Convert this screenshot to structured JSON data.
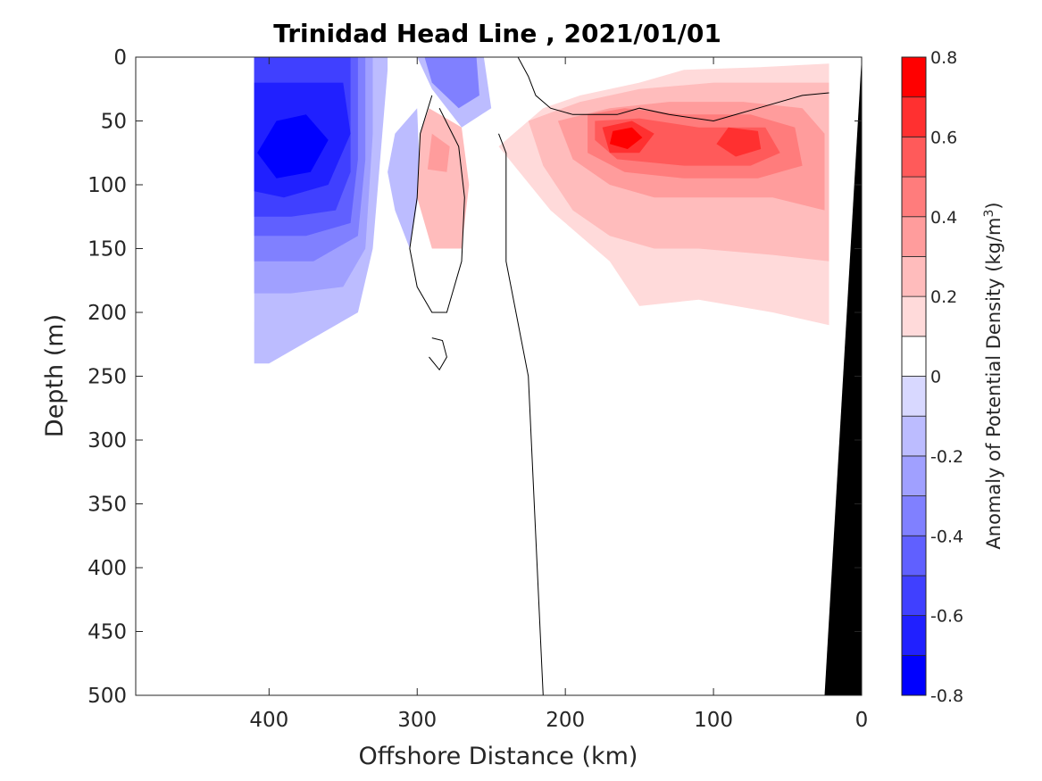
{
  "chart_data": {
    "type": "heatmap",
    "title": "Trinidad Head Line , 2021/01/01",
    "xlabel": "Offshore Distance (km)",
    "ylabel": "Depth (m)",
    "colorbar_label": "Anomaly of Potential Density (kg/m",
    "colorbar_label_sup": "3",
    "colorbar_label_end": ")",
    "xlim": [
      490,
      0
    ],
    "ylim": [
      0,
      500
    ],
    "x_reversed": true,
    "y_reversed": true,
    "xticks": [
      400,
      300,
      200,
      100,
      0
    ],
    "xtick_labels": [
      "400",
      "300",
      "200",
      "100",
      "0"
    ],
    "yticks": [
      0,
      50,
      100,
      150,
      200,
      250,
      300,
      350,
      400,
      450,
      500
    ],
    "ytick_labels": [
      "0",
      "50",
      "100",
      "150",
      "200",
      "250",
      "300",
      "350",
      "400",
      "450",
      "500"
    ],
    "clim": [
      -0.8,
      0.8
    ],
    "color_levels": [
      -0.8,
      -0.7,
      -0.6,
      -0.5,
      -0.4,
      -0.3,
      -0.2,
      -0.1,
      0,
      0.1,
      0.2,
      0.3,
      0.4,
      0.5,
      0.6,
      0.7,
      0.8
    ],
    "colorbar_ticks": [
      0.8,
      0.6,
      0.4,
      0.2,
      0,
      -0.2,
      -0.4,
      -0.6,
      -0.8
    ],
    "colorbar_tick_labels": [
      "0.8",
      "0.6",
      "0.4",
      "0.2",
      "0",
      "-0.2",
      "-0.4",
      "-0.6",
      "-0.8"
    ],
    "colors": {
      "neg": [
        "#0000ff",
        "#2020ff",
        "#4040ff",
        "#6060ff",
        "#8080ff",
        "#a0a0ff",
        "#bcbcff",
        "#d8d8ff"
      ],
      "pos": [
        "#ffdada",
        "#ffbcbc",
        "#ff9c9c",
        "#ff7c7c",
        "#ff5a5a",
        "#ff3030",
        "#ff0000"
      ],
      "land": "#000000",
      "contour": "#000000"
    },
    "regions": [
      {
        "level": -0.2,
        "pts": [
          [
            410,
            0
          ],
          [
            320,
            0
          ],
          [
            320,
            10
          ],
          [
            330,
            150
          ],
          [
            340,
            200
          ],
          [
            370,
            220
          ],
          [
            400,
            240
          ],
          [
            410,
            240
          ]
        ]
      },
      {
        "level": -0.3,
        "pts": [
          [
            410,
            0
          ],
          [
            330,
            0
          ],
          [
            330,
            60
          ],
          [
            335,
            150
          ],
          [
            350,
            180
          ],
          [
            385,
            185
          ],
          [
            410,
            185
          ]
        ]
      },
      {
        "level": -0.4,
        "pts": [
          [
            410,
            0
          ],
          [
            335,
            0
          ],
          [
            335,
            80
          ],
          [
            340,
            140
          ],
          [
            370,
            160
          ],
          [
            410,
            160
          ]
        ]
      },
      {
        "level": -0.5,
        "pts": [
          [
            410,
            0
          ],
          [
            340,
            0
          ],
          [
            340,
            80
          ],
          [
            345,
            130
          ],
          [
            375,
            140
          ],
          [
            410,
            140
          ]
        ]
      },
      {
        "level": -0.6,
        "pts": [
          [
            410,
            0
          ],
          [
            345,
            0
          ],
          [
            345,
            90
          ],
          [
            355,
            120
          ],
          [
            385,
            125
          ],
          [
            410,
            125
          ]
        ]
      },
      {
        "level": -0.7,
        "pts": [
          [
            410,
            20
          ],
          [
            350,
            20
          ],
          [
            345,
            60
          ],
          [
            360,
            100
          ],
          [
            390,
            110
          ],
          [
            410,
            105
          ]
        ]
      },
      {
        "level": -0.8,
        "pts": [
          [
            395,
            50
          ],
          [
            375,
            45
          ],
          [
            360,
            65
          ],
          [
            372,
            90
          ],
          [
            395,
            95
          ],
          [
            408,
            75
          ]
        ]
      },
      {
        "level": -0.2,
        "pts": [
          [
            300,
            0
          ],
          [
            255,
            0
          ],
          [
            250,
            40
          ],
          [
            270,
            55
          ],
          [
            290,
            25
          ]
        ]
      },
      {
        "level": -0.4,
        "pts": [
          [
            295,
            0
          ],
          [
            260,
            0
          ],
          [
            258,
            30
          ],
          [
            272,
            40
          ],
          [
            290,
            20
          ]
        ]
      },
      {
        "level": -0.2,
        "pts": [
          [
            300,
            40
          ],
          [
            315,
            60
          ],
          [
            320,
            90
          ],
          [
            315,
            120
          ],
          [
            305,
            150
          ],
          [
            298,
            100
          ]
        ]
      },
      {
        "level": 0.1,
        "pts": [
          [
            245,
            70
          ],
          [
            215,
            40
          ],
          [
            190,
            30
          ],
          [
            150,
            20
          ],
          [
            120,
            10
          ],
          [
            70,
            8
          ],
          [
            22,
            5
          ],
          [
            22,
            210
          ],
          [
            60,
            200
          ],
          [
            110,
            190
          ],
          [
            150,
            195
          ],
          [
            170,
            160
          ],
          [
            190,
            140
          ],
          [
            210,
            120
          ]
        ]
      },
      {
        "level": 0.2,
        "pts": [
          [
            225,
            50
          ],
          [
            190,
            35
          ],
          [
            150,
            25
          ],
          [
            100,
            20
          ],
          [
            50,
            20
          ],
          [
            22,
            20
          ],
          [
            22,
            160
          ],
          [
            60,
            155
          ],
          [
            110,
            150
          ],
          [
            140,
            150
          ],
          [
            170,
            140
          ],
          [
            195,
            120
          ],
          [
            215,
            85
          ]
        ]
      },
      {
        "level": 0.3,
        "pts": [
          [
            205,
            50
          ],
          [
            170,
            40
          ],
          [
            130,
            35
          ],
          [
            80,
            35
          ],
          [
            40,
            40
          ],
          [
            25,
            60
          ],
          [
            25,
            120
          ],
          [
            60,
            110
          ],
          [
            100,
            110
          ],
          [
            140,
            110
          ],
          [
            170,
            100
          ],
          [
            195,
            80
          ]
        ]
      },
      {
        "level": 0.4,
        "pts": [
          [
            185,
            45
          ],
          [
            160,
            40
          ],
          [
            120,
            45
          ],
          [
            75,
            45
          ],
          [
            45,
            55
          ],
          [
            40,
            85
          ],
          [
            70,
            95
          ],
          [
            120,
            95
          ],
          [
            160,
            90
          ],
          [
            185,
            75
          ]
        ]
      },
      {
        "level": 0.5,
        "pts": [
          [
            180,
            50
          ],
          [
            150,
            48
          ],
          [
            110,
            55
          ],
          [
            65,
            55
          ],
          [
            55,
            75
          ],
          [
            75,
            85
          ],
          [
            120,
            85
          ],
          [
            165,
            80
          ],
          [
            180,
            65
          ]
        ]
      },
      {
        "level": 0.6,
        "pts": [
          [
            175,
            55
          ],
          [
            155,
            50
          ],
          [
            140,
            60
          ],
          [
            150,
            75
          ],
          [
            170,
            75
          ]
        ]
      },
      {
        "level": 0.6,
        "pts": [
          [
            90,
            55
          ],
          [
            70,
            58
          ],
          [
            68,
            72
          ],
          [
            85,
            78
          ],
          [
            98,
            68
          ]
        ]
      },
      {
        "level": 0.7,
        "pts": [
          [
            168,
            58
          ],
          [
            155,
            55
          ],
          [
            148,
            63
          ],
          [
            158,
            72
          ],
          [
            170,
            68
          ]
        ]
      },
      {
        "level": 0.2,
        "pts": [
          [
            292,
            40
          ],
          [
            270,
            55
          ],
          [
            265,
            100
          ],
          [
            270,
            150
          ],
          [
            290,
            150
          ],
          [
            300,
            110
          ],
          [
            298,
            60
          ]
        ]
      },
      {
        "level": 0.3,
        "pts": [
          [
            290,
            60
          ],
          [
            278,
            70
          ],
          [
            280,
            90
          ],
          [
            293,
            88
          ]
        ]
      }
    ],
    "contour_zero": [
      [
        [
          232,
          0
        ],
        [
          225,
          15
        ],
        [
          220,
          30
        ],
        [
          210,
          40
        ],
        [
          195,
          45
        ],
        [
          180,
          45
        ],
        [
          165,
          45
        ],
        [
          150,
          40
        ],
        [
          130,
          45
        ],
        [
          100,
          50
        ],
        [
          70,
          40
        ],
        [
          40,
          30
        ],
        [
          22,
          28
        ]
      ],
      [
        [
          290,
          30
        ],
        [
          298,
          60
        ],
        [
          300,
          110
        ],
        [
          305,
          150
        ],
        [
          300,
          180
        ],
        [
          290,
          200
        ],
        [
          280,
          200
        ],
        [
          270,
          160
        ],
        [
          268,
          110
        ],
        [
          272,
          70
        ],
        [
          285,
          40
        ]
      ],
      [
        [
          290,
          220
        ],
        [
          283,
          222
        ],
        [
          280,
          235
        ],
        [
          285,
          245
        ],
        [
          292,
          235
        ]
      ],
      [
        [
          245,
          60
        ],
        [
          240,
          75
        ],
        [
          240,
          120
        ],
        [
          240,
          160
        ],
        [
          225,
          250
        ],
        [
          215,
          500
        ]
      ]
    ],
    "land": [
      [
        0,
        0
      ],
      [
        25,
        500
      ],
      [
        0,
        500
      ]
    ]
  }
}
